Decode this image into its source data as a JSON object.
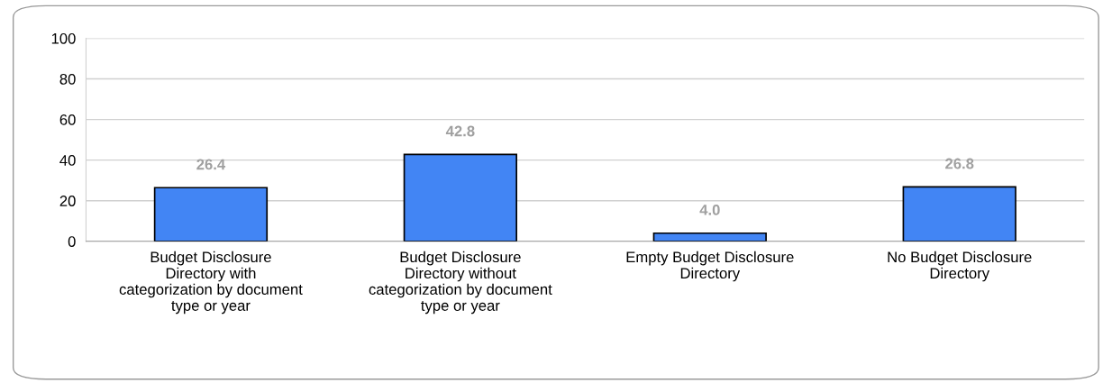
{
  "chart_data": {
    "type": "bar",
    "categories": [
      "Budget Disclosure Directory with categorization by document type or year",
      "Budget Disclosure Directory without categorization by document type or year",
      "Empty Budget Disclosure Directory",
      "No Budget Disclosure Directory"
    ],
    "values": [
      26.4,
      42.8,
      4.0,
      26.8
    ],
    "value_labels": [
      "26.4",
      "42.8",
      "4.0",
      "26.8"
    ],
    "color": "#4285f4",
    "ylim": [
      0,
      100
    ],
    "yticks": [
      0,
      20,
      40,
      60,
      80,
      100
    ],
    "grid": "y",
    "legend": false
  }
}
